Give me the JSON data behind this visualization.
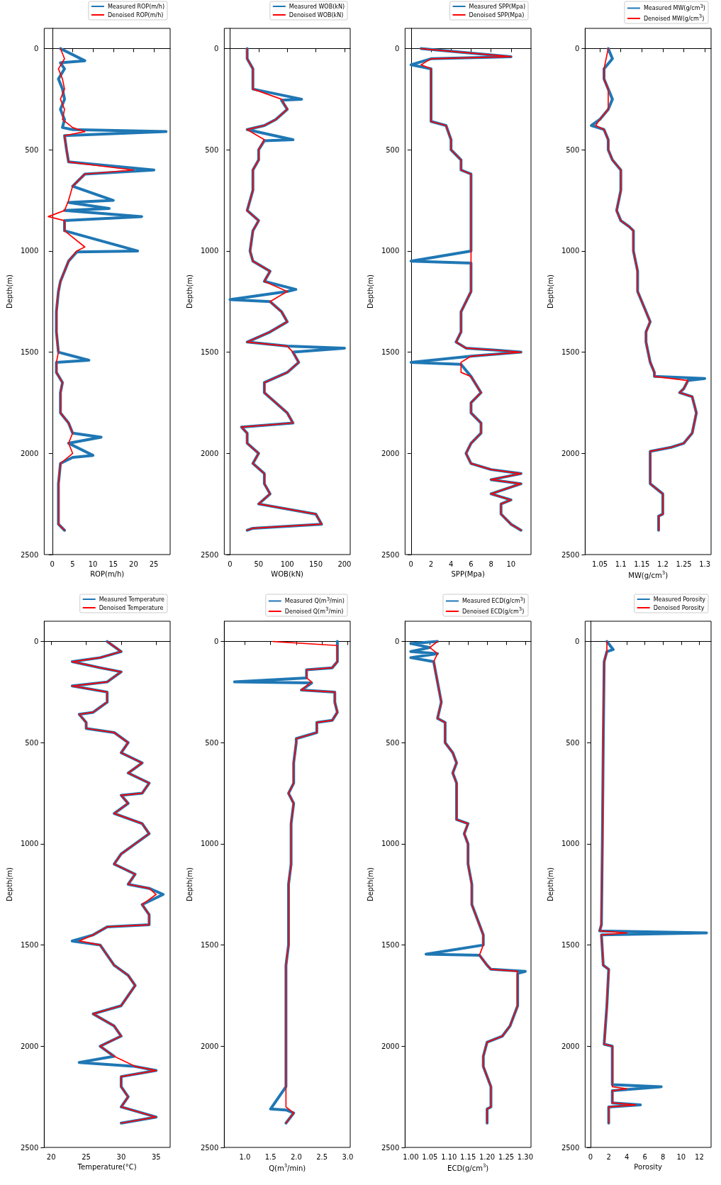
{
  "chart_data": [
    {
      "type": "line",
      "xlabel": "ROP(m/h)",
      "ylabel": "Depth(m)",
      "legend": "top right",
      "xlim": [
        -2,
        29
      ],
      "xticks": [
        0,
        5,
        10,
        15,
        20,
        25
      ],
      "ylim": [
        2500,
        -100
      ],
      "yticks": [
        0,
        500,
        1000,
        1500,
        2000,
        2500
      ],
      "series": [
        {
          "name": "Measured ROP(m/h)",
          "color": "#1f77b4",
          "x": [
            2,
            8,
            2,
            3,
            1.5,
            2.5,
            3,
            2,
            3,
            2.5,
            5,
            28,
            3,
            3.5,
            4,
            25,
            8,
            5,
            15,
            4,
            14,
            3,
            22,
            3,
            3,
            21,
            6,
            4,
            3,
            2,
            1.5,
            1,
            1,
            1.5,
            9,
            1,
            1,
            2.5,
            2,
            2,
            4,
            5,
            12,
            4,
            10,
            5,
            2,
            1.5,
            1.5,
            1.5,
            3
          ],
          "values": [
            0,
            60,
            70,
            100,
            150,
            200,
            250,
            300,
            350,
            390,
            400,
            410,
            430,
            500,
            560,
            600,
            620,
            680,
            750,
            760,
            790,
            800,
            830,
            850,
            900,
            1000,
            1005,
            1050,
            1100,
            1150,
            1200,
            1300,
            1400,
            1500,
            1540,
            1550,
            1600,
            1650,
            1700,
            1800,
            1850,
            1900,
            1920,
            1950,
            2010,
            2020,
            2050,
            2150,
            2250,
            2350,
            2380
          ]
        },
        {
          "name": "Denoised ROP(m/h)",
          "color": "#ff0000",
          "x": [
            2,
            3,
            1.5,
            2.5,
            3,
            2,
            3,
            2.5,
            5,
            8,
            3,
            3.5,
            4,
            20,
            8,
            5,
            4,
            3,
            -1,
            3,
            3,
            8,
            6,
            4,
            3,
            2,
            1.5,
            1,
            1,
            1.5,
            1,
            1,
            2.5,
            2,
            2,
            4,
            5,
            4,
            5,
            2,
            1.5,
            1.5,
            1.5,
            3
          ],
          "values": [
            0,
            50,
            100,
            150,
            200,
            250,
            300,
            350,
            390,
            410,
            430,
            500,
            560,
            600,
            620,
            680,
            750,
            800,
            830,
            850,
            900,
            980,
            1000,
            1050,
            1100,
            1150,
            1200,
            1300,
            1400,
            1500,
            1550,
            1600,
            1650,
            1700,
            1800,
            1850,
            1900,
            1950,
            2000,
            2050,
            2150,
            2250,
            2350,
            2380
          ]
        }
      ]
    },
    {
      "type": "line",
      "xlabel": "WOB(kN)",
      "ylabel": "Depth(m)",
      "legend": "top right",
      "xlim": [
        -10,
        210
      ],
      "xticks": [
        0,
        50,
        100,
        150,
        200
      ],
      "ylim": [
        2500,
        -100
      ],
      "yticks": [
        0,
        500,
        1000,
        1500,
        2000,
        2500
      ],
      "series": [
        {
          "name": "Measured WOB(kN)",
          "color": "#1f77b4",
          "x": [
            30,
            30,
            40,
            40,
            40,
            125,
            90,
            100,
            80,
            60,
            30,
            110,
            60,
            50,
            50,
            40,
            40,
            30,
            50,
            40,
            35,
            40,
            70,
            60,
            115,
            100,
            0,
            70,
            90,
            100,
            70,
            30,
            100,
            200,
            110,
            120,
            100,
            60,
            60,
            80,
            100,
            110,
            20,
            30,
            30,
            50,
            40,
            60,
            60,
            70,
            50,
            150,
            160,
            40,
            30
          ],
          "values": [
            0,
            50,
            100,
            150,
            200,
            250,
            255,
            300,
            350,
            380,
            400,
            450,
            455,
            500,
            550,
            600,
            700,
            800,
            850,
            900,
            1000,
            1050,
            1100,
            1150,
            1190,
            1200,
            1240,
            1250,
            1300,
            1350,
            1400,
            1450,
            1470,
            1480,
            1500,
            1550,
            1600,
            1650,
            1700,
            1750,
            1800,
            1850,
            1870,
            1900,
            1950,
            2000,
            2050,
            2100,
            2150,
            2200,
            2250,
            2300,
            2350,
            2370,
            2380
          ]
        },
        {
          "name": "Denoised WOB(kN)",
          "color": "#ff0000",
          "x": [
            30,
            30,
            40,
            40,
            40,
            90,
            100,
            80,
            60,
            30,
            60,
            50,
            50,
            40,
            40,
            30,
            50,
            40,
            35,
            40,
            70,
            60,
            100,
            70,
            90,
            100,
            70,
            30,
            100,
            110,
            120,
            100,
            60,
            60,
            80,
            100,
            110,
            20,
            30,
            30,
            50,
            40,
            60,
            60,
            70,
            50,
            150,
            160,
            40,
            30
          ],
          "values": [
            0,
            50,
            100,
            150,
            200,
            250,
            300,
            350,
            380,
            400,
            450,
            500,
            550,
            600,
            700,
            800,
            850,
            900,
            1000,
            1050,
            1100,
            1150,
            1200,
            1250,
            1300,
            1350,
            1400,
            1450,
            1470,
            1500,
            1550,
            1600,
            1650,
            1700,
            1750,
            1800,
            1850,
            1870,
            1900,
            1950,
            2000,
            2050,
            2100,
            2150,
            2200,
            2250,
            2300,
            2350,
            2370,
            2380
          ]
        }
      ]
    },
    {
      "type": "line",
      "xlabel": "SPP(Mpa)",
      "ylabel": "Depth(m)",
      "legend": "top right",
      "xlim": [
        -0.6,
        12
      ],
      "xticks": [
        0,
        2,
        4,
        6,
        8,
        10
      ],
      "ylim": [
        2500,
        -100
      ],
      "yticks": [
        0,
        500,
        1000,
        1500,
        2000,
        2500
      ],
      "series": [
        {
          "name": "Measured SPP(Mpa)",
          "color": "#1f77b4",
          "x": [
            1,
            10,
            2,
            0,
            2,
            2,
            2,
            2,
            3.5,
            4,
            4,
            5,
            5,
            6,
            6,
            6,
            6,
            6,
            0,
            6,
            6,
            6,
            5.5,
            5,
            5,
            4.5,
            5.5,
            8.5,
            11,
            6,
            0,
            5,
            6,
            7,
            6,
            6,
            7,
            7,
            6,
            5.5,
            6,
            8,
            11,
            8,
            11,
            8,
            10,
            9,
            9,
            10,
            11
          ],
          "values": [
            0,
            40,
            50,
            80,
            100,
            200,
            300,
            360,
            380,
            450,
            500,
            550,
            600,
            620,
            700,
            800,
            900,
            1000,
            1050,
            1060,
            1100,
            1200,
            1250,
            1300,
            1400,
            1450,
            1480,
            1490,
            1500,
            1520,
            1550,
            1560,
            1620,
            1700,
            1750,
            1800,
            1850,
            1900,
            1950,
            2000,
            2050,
            2080,
            2100,
            2130,
            2150,
            2200,
            2230,
            2250,
            2300,
            2350,
            2380
          ]
        },
        {
          "name": "Denoised SPP(Mpa)",
          "color": "#ff0000",
          "x": [
            1,
            10,
            2,
            1,
            2,
            2,
            2,
            2,
            3.5,
            4,
            4,
            5,
            5,
            6,
            6,
            6,
            6,
            6,
            6,
            6,
            5.5,
            5,
            5,
            4.5,
            5.5,
            8.5,
            11,
            6,
            5,
            5,
            6,
            7,
            6,
            6,
            7,
            7,
            6,
            5.5,
            6,
            8,
            11,
            8,
            11,
            8,
            10,
            9,
            9,
            10,
            11
          ],
          "values": [
            0,
            40,
            50,
            80,
            100,
            200,
            300,
            360,
            380,
            450,
            500,
            550,
            600,
            620,
            700,
            800,
            900,
            1000,
            1100,
            1200,
            1250,
            1300,
            1400,
            1450,
            1480,
            1490,
            1500,
            1520,
            1550,
            1600,
            1620,
            1700,
            1750,
            1800,
            1850,
            1900,
            1950,
            2000,
            2050,
            2080,
            2100,
            2130,
            2150,
            2200,
            2230,
            2250,
            2300,
            2350,
            2380
          ]
        }
      ]
    },
    {
      "type": "line",
      "xlabel": "MW(g/cm$^{3}$)",
      "ylabel": "Depth(m)",
      "legend": "top right",
      "xlim": [
        1.015,
        1.315
      ],
      "xticks": [
        1.05,
        1.1,
        1.15,
        1.2,
        1.25,
        1.3
      ],
      "ylim": [
        2500,
        -100
      ],
      "yticks": [
        0,
        500,
        1000,
        1500,
        2000,
        2500
      ],
      "series": [
        {
          "name": "Measured MW(g/cm$^{3}$)",
          "color": "#1f77b4",
          "x": [
            1.07,
            1.08,
            1.06,
            1.06,
            1.07,
            1.08,
            1.07,
            1.05,
            1.03,
            1.06,
            1.07,
            1.07,
            1.08,
            1.1,
            1.1,
            1.09,
            1.1,
            1.12,
            1.13,
            1.13,
            1.14,
            1.14,
            1.16,
            1.17,
            1.16,
            1.16,
            1.17,
            1.18,
            1.18,
            1.3,
            1.26,
            1.25,
            1.24,
            1.27,
            1.28,
            1.27,
            1.25,
            1.22,
            1.17,
            1.17,
            1.17,
            1.2,
            1.2,
            1.19,
            1.19
          ],
          "values": [
            0,
            50,
            100,
            150,
            200,
            250,
            300,
            350,
            380,
            400,
            450,
            500,
            550,
            600,
            700,
            800,
            850,
            880,
            900,
            1000,
            1100,
            1200,
            1300,
            1350,
            1400,
            1450,
            1550,
            1600,
            1620,
            1630,
            1640,
            1680,
            1700,
            1720,
            1800,
            1900,
            1950,
            1970,
            1990,
            2100,
            2150,
            2200,
            2300,
            2310,
            2380
          ]
        },
        {
          "name": "Denoised MW(g/cm$^{3}$)",
          "color": "#ff0000",
          "x": [
            1.07,
            1.06,
            1.06,
            1.07,
            1.07,
            1.07,
            1.05,
            1.04,
            1.06,
            1.07,
            1.07,
            1.08,
            1.1,
            1.1,
            1.09,
            1.1,
            1.12,
            1.13,
            1.13,
            1.14,
            1.14,
            1.16,
            1.17,
            1.16,
            1.16,
            1.17,
            1.18,
            1.18,
            1.26,
            1.25,
            1.24,
            1.27,
            1.28,
            1.27,
            1.25,
            1.22,
            1.17,
            1.17,
            1.17,
            1.2,
            1.2,
            1.19,
            1.19
          ],
          "values": [
            0,
            100,
            150,
            200,
            250,
            300,
            350,
            380,
            400,
            450,
            500,
            550,
            600,
            700,
            800,
            850,
            880,
            900,
            1000,
            1100,
            1200,
            1300,
            1350,
            1400,
            1450,
            1550,
            1600,
            1620,
            1640,
            1680,
            1700,
            1720,
            1800,
            1900,
            1950,
            1970,
            1990,
            2100,
            2150,
            2200,
            2300,
            2310,
            2380
          ]
        }
      ]
    },
    {
      "type": "line",
      "xlabel": "Temperature(°C)",
      "ylabel": "Depth(m)",
      "legend": "top right",
      "xlim": [
        19,
        37
      ],
      "xticks": [
        20,
        25,
        30,
        35
      ],
      "ylim": [
        2500,
        -100
      ],
      "yticks": [
        0,
        500,
        1000,
        1500,
        2000,
        2500
      ],
      "series": [
        {
          "name": "Measured Temperature",
          "color": "#1f77b4",
          "x": [
            28,
            30,
            27,
            23,
            27,
            30,
            28,
            23,
            28,
            28,
            26,
            24,
            25,
            25,
            29,
            31,
            30,
            33,
            31,
            34,
            33,
            30,
            31,
            29,
            33,
            34,
            32,
            30,
            29,
            32,
            31,
            34,
            36,
            33,
            34,
            34,
            28,
            26,
            23,
            27,
            28,
            29,
            31,
            32,
            31,
            30,
            26,
            29,
            30,
            27,
            29,
            24,
            32,
            35,
            30,
            30,
            31,
            30,
            35,
            30
          ],
          "values": [
            0,
            50,
            80,
            100,
            130,
            150,
            200,
            220,
            250,
            300,
            350,
            360,
            400,
            430,
            450,
            500,
            550,
            600,
            650,
            700,
            750,
            760,
            800,
            850,
            900,
            950,
            1000,
            1050,
            1100,
            1150,
            1200,
            1220,
            1250,
            1300,
            1350,
            1400,
            1410,
            1450,
            1480,
            1500,
            1550,
            1600,
            1650,
            1700,
            1750,
            1800,
            1840,
            1900,
            1950,
            2000,
            2050,
            2080,
            2100,
            2120,
            2150,
            2200,
            2250,
            2300,
            2350,
            2380
          ]
        },
        {
          "name": "Denoised Temperature",
          "color": "#ff0000",
          "x": [
            28,
            30,
            27,
            23,
            27,
            30,
            28,
            23,
            28,
            28,
            26,
            24,
            25,
            25,
            29,
            31,
            30,
            33,
            31,
            34,
            33,
            30,
            31,
            29,
            33,
            34,
            32,
            30,
            29,
            32,
            31,
            34,
            35,
            33,
            34,
            34,
            28,
            26,
            24,
            27,
            28,
            29,
            31,
            32,
            31,
            30,
            26,
            29,
            30,
            27,
            29,
            32,
            35,
            30,
            30,
            31,
            30,
            35,
            30
          ],
          "values": [
            0,
            50,
            80,
            100,
            130,
            150,
            200,
            220,
            250,
            300,
            350,
            360,
            400,
            430,
            450,
            500,
            550,
            600,
            650,
            700,
            750,
            760,
            800,
            850,
            900,
            950,
            1000,
            1050,
            1100,
            1150,
            1200,
            1220,
            1250,
            1300,
            1350,
            1400,
            1410,
            1450,
            1480,
            1500,
            1550,
            1600,
            1650,
            1700,
            1750,
            1800,
            1840,
            1900,
            1950,
            2000,
            2050,
            2100,
            2120,
            2150,
            2200,
            2250,
            2300,
            2350,
            2380
          ]
        }
      ]
    },
    {
      "type": "line",
      "xlabel": "Q(m$^{3}$/min)",
      "ylabel": "Depth(m)",
      "legend": "top right",
      "xlim": [
        0.6,
        3.05
      ],
      "xticks": [
        {
          "value": 1,
          "label": "1.0"
        },
        1.5,
        {
          "value": 2,
          "label": "2.0"
        },
        2.5,
        {
          "value": 3,
          "label": "3.0"
        }
      ],
      "ylim": [
        2500,
        -100
      ],
      "yticks": [
        0,
        500,
        1000,
        1500,
        2000,
        2500
      ],
      "series": [
        {
          "name": "Measured Q(m$^{3}$/min)",
          "color": "#1f77b4",
          "x": [
            2.8,
            2.8,
            2.8,
            2.7,
            2.2,
            2.2,
            0.8,
            2.3,
            2.1,
            2.75,
            2.75,
            2.8,
            2.7,
            2.4,
            2.4,
            2,
            2,
            1.95,
            1.95,
            1.85,
            1.95,
            1.9,
            1.9,
            1.9,
            1.85,
            1.85,
            1.85,
            1.85,
            1.8,
            1.8,
            1.8,
            1.8,
            1.5,
            1.8,
            1.95,
            1.8
          ],
          "values": [
            0,
            50,
            100,
            130,
            140,
            180,
            200,
            205,
            240,
            250,
            300,
            350,
            390,
            400,
            450,
            480,
            500,
            600,
            700,
            750,
            800,
            900,
            1000,
            1100,
            1200,
            1300,
            1400,
            1500,
            1600,
            1800,
            2000,
            2200,
            2310,
            2315,
            2330,
            2380
          ]
        },
        {
          "name": "Denoised Q(m$^{3}$/min)",
          "color": "#ff0000",
          "x": [
            1.55,
            2.8,
            2.8,
            2.8,
            2.7,
            2.2,
            2.2,
            2.3,
            2.1,
            2.75,
            2.75,
            2.8,
            2.7,
            2.4,
            2.4,
            2,
            2,
            1.95,
            1.95,
            1.85,
            1.95,
            1.9,
            1.9,
            1.9,
            1.85,
            1.85,
            1.85,
            1.85,
            1.8,
            1.8,
            1.8,
            1.8,
            1.8,
            1.95,
            1.8
          ],
          "values": [
            0,
            20,
            50,
            100,
            130,
            140,
            180,
            200,
            240,
            250,
            300,
            350,
            390,
            400,
            450,
            480,
            500,
            600,
            700,
            750,
            800,
            900,
            1000,
            1100,
            1200,
            1300,
            1400,
            1500,
            1600,
            1800,
            2000,
            2200,
            2300,
            2330,
            2380
          ]
        }
      ]
    },
    {
      "type": "line",
      "xlabel": "ECD(g/cm$^{3}$)",
      "ylabel": "Depth(m)",
      "legend": "top right",
      "xlim": [
        0.985,
        1.315
      ],
      "xticks": [
        {
          "value": 1,
          "label": "1.00"
        },
        1.05,
        {
          "value": 1.1,
          "label": "1.10"
        },
        1.15,
        {
          "value": 1.2,
          "label": "1.20"
        },
        1.25,
        {
          "value": 1.3,
          "label": "1.30"
        }
      ],
      "ylim": [
        2500,
        -100
      ],
      "yticks": [
        0,
        500,
        1000,
        1500,
        2000,
        2500
      ],
      "series": [
        {
          "name": "Measured ECD(g/cm$^{3}$)",
          "color": "#1f77b4",
          "x": [
            1.07,
            1,
            1.05,
            1,
            1.07,
            1,
            1.06,
            1.07,
            1.08,
            1.07,
            1.09,
            1.09,
            1.11,
            1.12,
            1.11,
            1.12,
            1.12,
            1.12,
            1.15,
            1.14,
            1.15,
            1.15,
            1.16,
            1.16,
            1.17,
            1.18,
            1.19,
            1.19,
            1.04,
            1.18,
            1.2,
            1.21,
            1.3,
            1.28,
            1.28,
            1.28,
            1.26,
            1.24,
            1.2,
            1.19,
            1.19,
            1.2,
            1.21,
            1.21,
            1.2,
            1.2
          ],
          "values": [
            0,
            10,
            30,
            50,
            60,
            80,
            100,
            200,
            300,
            380,
            400,
            500,
            550,
            600,
            650,
            700,
            800,
            880,
            900,
            950,
            1000,
            1100,
            1200,
            1300,
            1350,
            1400,
            1450,
            1500,
            1545,
            1550,
            1600,
            1620,
            1630,
            1640,
            1700,
            1800,
            1900,
            1950,
            1980,
            2050,
            2100,
            2150,
            2200,
            2300,
            2310,
            2380
          ]
        },
        {
          "name": "Denoised ECD(g/cm$^{3}$)",
          "color": "#ff0000",
          "x": [
            1.07,
            1.05,
            1.07,
            1.06,
            1.07,
            1.08,
            1.07,
            1.09,
            1.09,
            1.11,
            1.12,
            1.11,
            1.12,
            1.12,
            1.12,
            1.15,
            1.14,
            1.15,
            1.15,
            1.16,
            1.16,
            1.17,
            1.18,
            1.19,
            1.19,
            1.18,
            1.2,
            1.21,
            1.28,
            1.28,
            1.28,
            1.26,
            1.24,
            1.2,
            1.19,
            1.19,
            1.2,
            1.21,
            1.21,
            1.2,
            1.2
          ],
          "values": [
            0,
            30,
            60,
            100,
            200,
            300,
            380,
            400,
            500,
            550,
            600,
            650,
            700,
            800,
            880,
            900,
            950,
            1000,
            1100,
            1200,
            1300,
            1350,
            1400,
            1450,
            1500,
            1550,
            1600,
            1620,
            1630,
            1700,
            1800,
            1900,
            1950,
            1980,
            2050,
            2100,
            2150,
            2200,
            2300,
            2310,
            2380
          ]
        }
      ]
    },
    {
      "type": "line",
      "xlabel": "Porosity",
      "ylabel": "Depth(m)",
      "legend": "top right",
      "xlim": [
        -0.6,
        13.3
      ],
      "xticks": [
        0,
        2,
        4,
        6,
        8,
        10,
        12
      ],
      "ylim": [
        2500,
        -100
      ],
      "yticks": [
        0,
        500,
        1000,
        1500,
        2000,
        2500
      ],
      "series": [
        {
          "name": "Measured Porosity",
          "color": "#1f77b4",
          "x": [
            1.8,
            2.5,
            1.8,
            1.5,
            1.4,
            1.3,
            1.2,
            1,
            12.8,
            1.2,
            1.4,
            2,
            1.8,
            1.5,
            2.4,
            2.4,
            7.8,
            2.4,
            2.4,
            5.5,
            2,
            2
          ],
          "values": [
            0,
            40,
            50,
            100,
            500,
            1000,
            1400,
            1430,
            1440,
            1450,
            1600,
            1620,
            1800,
            1990,
            2000,
            2190,
            2200,
            2220,
            2280,
            2290,
            2300,
            2380
          ]
        },
        {
          "name": "Denoised Porosity",
          "color": "#ff0000",
          "x": [
            1.8,
            1.8,
            1.5,
            1.4,
            1.3,
            1.2,
            1,
            4,
            1.2,
            1.4,
            2,
            1.8,
            1.5,
            2.4,
            2.4,
            4,
            2.4,
            2.4,
            5,
            2,
            2
          ],
          "values": [
            0,
            50,
            100,
            500,
            1000,
            1400,
            1430,
            1440,
            1450,
            1600,
            1620,
            1800,
            1990,
            2000,
            2200,
            2210,
            2220,
            2280,
            2290,
            2300,
            2380
          ]
        }
      ]
    }
  ]
}
